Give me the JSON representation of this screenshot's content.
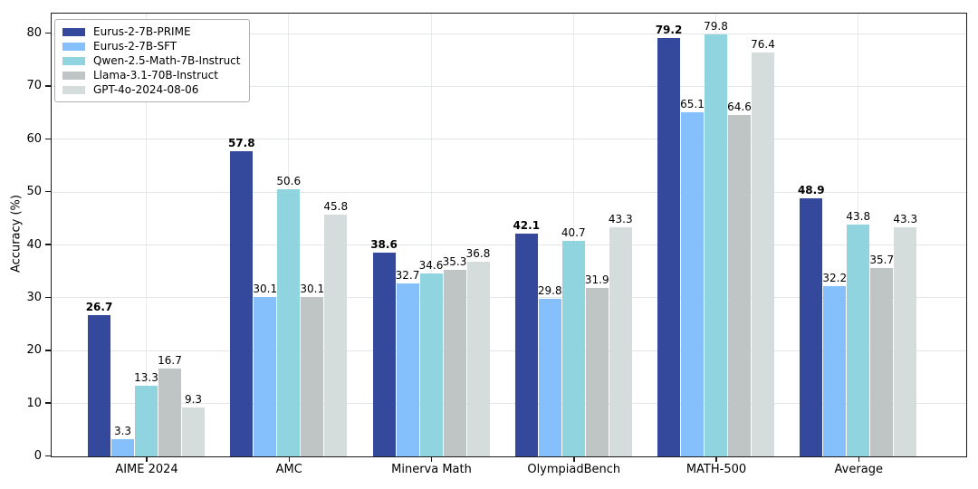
{
  "chart_data": {
    "type": "bar",
    "title": "",
    "xlabel": "",
    "ylabel": "Accuracy (%)",
    "ylim": [
      0,
      83.6
    ],
    "yticks": [
      0,
      10,
      20,
      30,
      40,
      50,
      60,
      70,
      80
    ],
    "grid": true,
    "legend_position": "upper-left",
    "categories": [
      "AIME 2024",
      "AMC",
      "Minerva Math",
      "OlympiadBench",
      "MATH-500",
      "Average"
    ],
    "series": [
      {
        "name": "Eurus-2-7B-PRIME",
        "color": "#34499c",
        "bold_labels": true,
        "values": [
          26.7,
          57.8,
          38.6,
          42.1,
          79.2,
          48.9
        ]
      },
      {
        "name": "Eurus-2-7B-SFT",
        "color": "#85c0fc",
        "bold_labels": false,
        "values": [
          3.3,
          30.1,
          32.7,
          29.8,
          65.1,
          32.2
        ]
      },
      {
        "name": "Qwen-2.5-Math-7B-Instruct",
        "color": "#90d4e0",
        "bold_labels": false,
        "values": [
          13.3,
          50.6,
          34.6,
          40.7,
          79.8,
          43.8
        ]
      },
      {
        "name": "Llama-3.1-70B-Instruct",
        "color": "#bec5c4",
        "bold_labels": false,
        "values": [
          16.7,
          30.1,
          35.3,
          31.9,
          64.6,
          35.7
        ]
      },
      {
        "name": "GPT-4o-2024-08-06",
        "color": "#d4dddb",
        "bold_labels": false,
        "values": [
          9.3,
          45.8,
          36.8,
          43.3,
          76.4,
          43.3
        ]
      }
    ],
    "value_label_decimals": 1,
    "axis_color": "#1a1a1a",
    "grid_color": "#e3e6e6",
    "background_color": "#ffffff"
  }
}
